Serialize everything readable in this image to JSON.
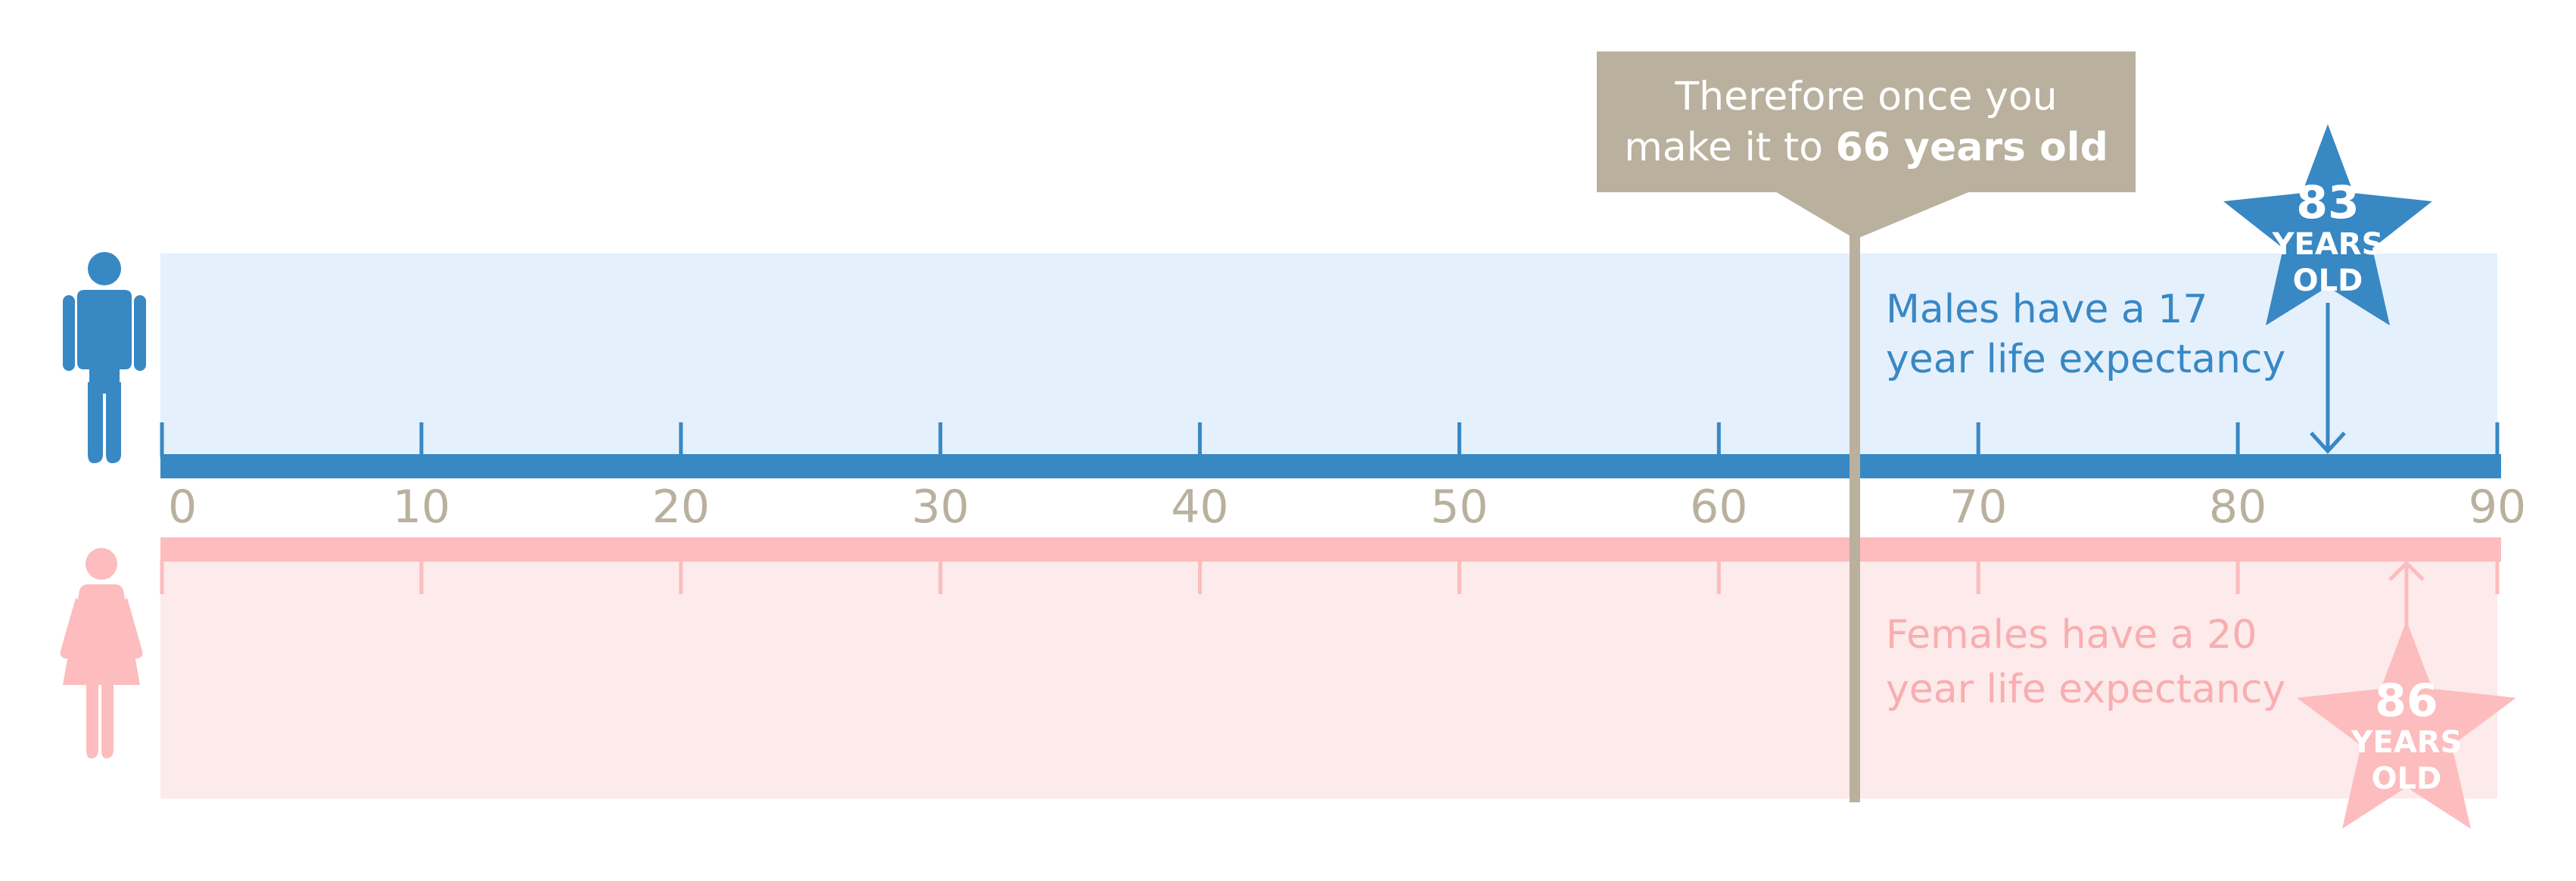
{
  "colors": {
    "male": "#3888c4",
    "male_bg": "#e5f0fd",
    "female": "#fdbcbd",
    "female_text": "#f8aeb0",
    "female_bg": "#fdeaea",
    "marker": "#b9b09e",
    "tick_label": "#b9b09e"
  },
  "axis": {
    "min": 0,
    "max": 90,
    "ticks": [
      "0",
      "10",
      "20",
      "30",
      "40",
      "50",
      "60",
      "70",
      "80",
      "90"
    ]
  },
  "callout": {
    "value": 66,
    "line1": "Therefore once you",
    "line2_prefix": "make it to ",
    "line2_bold": "66 years old"
  },
  "male": {
    "icon": "male-person-icon",
    "star": {
      "value": 83,
      "number": "83",
      "line1": "YEARS",
      "line2": "OLD"
    },
    "text_line1": "Males have a 17",
    "text_line2": "year life expectancy"
  },
  "female": {
    "icon": "female-person-icon",
    "star": {
      "value": 86,
      "number": "86",
      "line1": "YEARS",
      "line2": "OLD"
    },
    "text_line1": "Females have a 20",
    "text_line2": "year life expectancy"
  }
}
